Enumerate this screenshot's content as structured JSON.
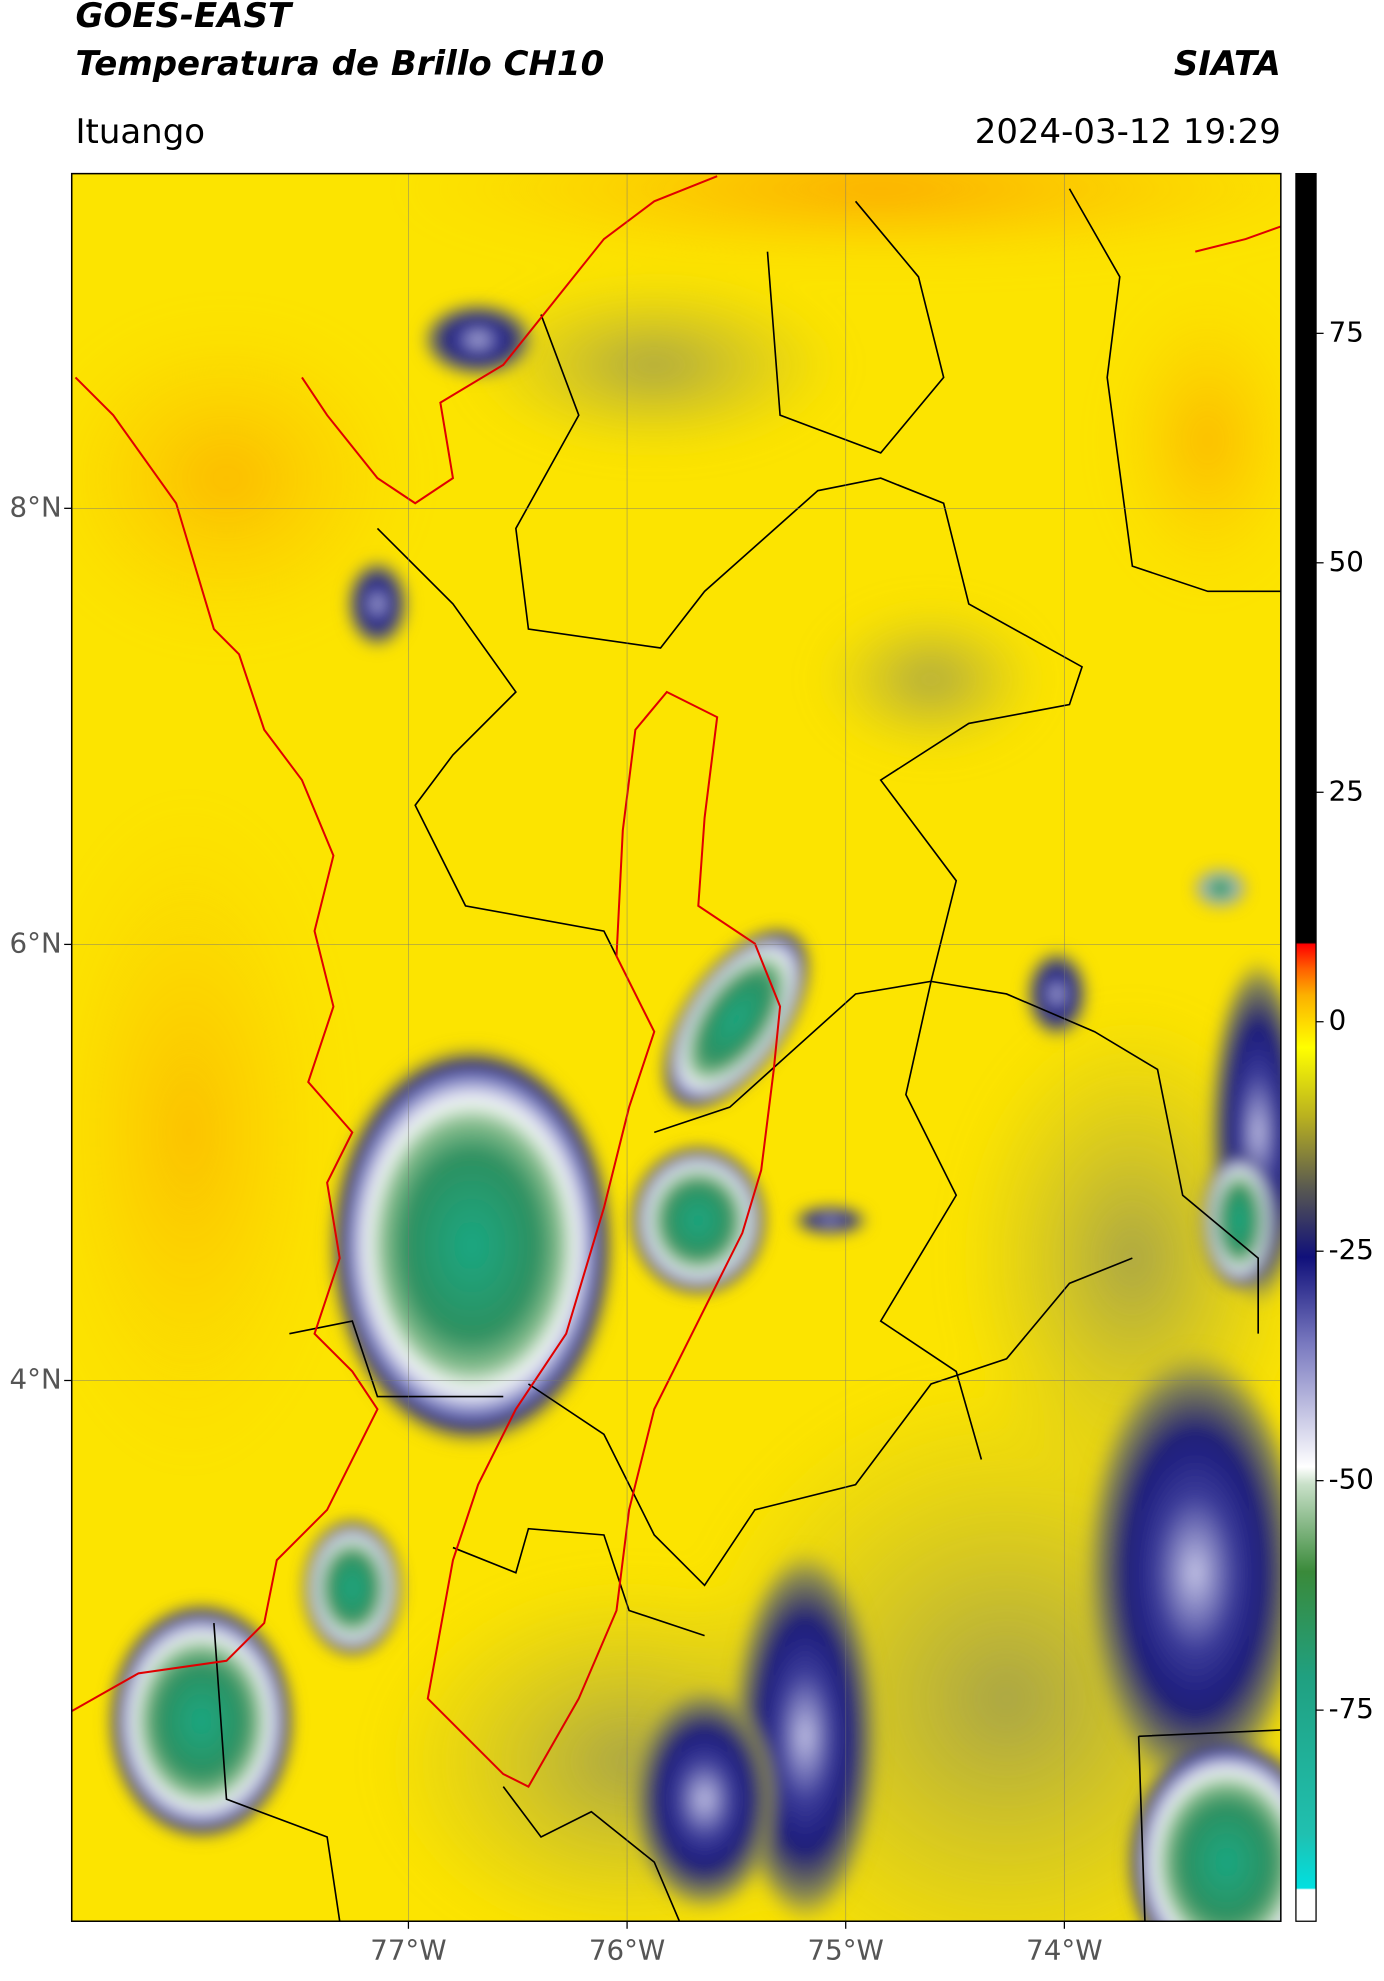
{
  "header": {
    "title_line1": "GOES-EAST",
    "title_line2": "Temperatura de Brillo CH10",
    "agency": "SIATA",
    "location": "Ituango",
    "timestamp": "2024-03-12 19:29"
  },
  "map": {
    "xlim": [
      -78.54,
      -73.01
    ],
    "ylim": [
      1.52,
      9.535
    ],
    "xticks": [
      {
        "value": -77,
        "label": "77°W"
      },
      {
        "value": -76,
        "label": "76°W"
      },
      {
        "value": -75,
        "label": "75°W"
      },
      {
        "value": -74,
        "label": "74°W"
      }
    ],
    "yticks": [
      {
        "value": 4,
        "label": "4°N"
      },
      {
        "value": 6,
        "label": "6°N"
      },
      {
        "value": 8,
        "label": "8°N"
      }
    ],
    "grid": true
  },
  "colorbar": {
    "lim": [
      -98,
      92.4
    ],
    "ticks": [
      -75,
      -50,
      -25,
      0,
      25,
      50,
      75
    ]
  }
}
